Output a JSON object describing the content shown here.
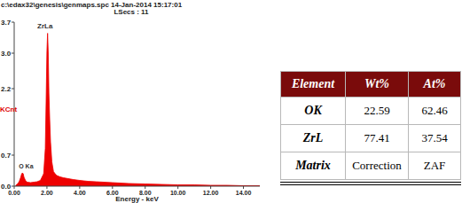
{
  "chart_data": {
    "type": "area",
    "title": "c:\\edax32\\genesis\\genmaps.spc 14-Jan-2014 15:17:01",
    "subtitle": "LSecs : 11",
    "x_label": "Energy - keV",
    "y_label": "KCnt",
    "x": [
      0.1,
      0.2,
      0.3,
      0.4,
      0.45,
      0.5,
      0.55,
      0.6,
      0.7,
      0.8,
      1.0,
      1.2,
      1.4,
      1.6,
      1.8,
      1.9,
      1.95,
      2.0,
      2.04,
      2.08,
      2.12,
      2.17,
      2.22,
      2.3,
      2.4,
      2.5,
      2.6,
      2.8,
      3.0,
      3.3,
      3.6,
      4.0,
      4.5,
      5.0,
      6.0,
      7.0,
      8.0,
      9.0,
      10.0,
      11.0,
      12.0,
      13.0,
      14.0,
      15.0
    ],
    "values": [
      0.02,
      0.05,
      0.1,
      0.2,
      0.27,
      0.3,
      0.28,
      0.2,
      0.12,
      0.09,
      0.08,
      0.09,
      0.1,
      0.13,
      0.28,
      0.85,
      1.9,
      3.05,
      3.45,
      3.0,
      2.1,
      1.5,
      1.0,
      0.55,
      0.33,
      0.28,
      0.24,
      0.21,
      0.19,
      0.17,
      0.15,
      0.13,
      0.11,
      0.1,
      0.08,
      0.06,
      0.05,
      0.04,
      0.03,
      0.03,
      0.02,
      0.02,
      0.01,
      0.01
    ],
    "color": "#ee0000",
    "xlim": [
      0,
      15
    ],
    "ylim": [
      0,
      3.7
    ],
    "xticks": [
      {
        "value": 0,
        "label": "0.00"
      },
      {
        "value": 2,
        "label": "2.00"
      },
      {
        "value": 4,
        "label": "4.00"
      },
      {
        "value": 6,
        "label": "6.00"
      },
      {
        "value": 8,
        "label": "8.00"
      },
      {
        "value": 10,
        "label": "10.00"
      },
      {
        "value": 12,
        "label": "12.00"
      },
      {
        "value": 14,
        "label": "14.00"
      }
    ],
    "yticks": [
      {
        "value": 0,
        "label": "0.0"
      },
      0.7,
      2.2,
      {
        "value": 3,
        "label": "3.0"
      },
      3.7
    ],
    "annotations": [
      {
        "text": "ZrLa",
        "x": 2.04,
        "y": 3.45
      },
      {
        "text": "O Ka",
        "x": 0.5,
        "y": 0.3
      }
    ],
    "grid": false
  },
  "table": {
    "header": [
      "Element",
      "Wt%",
      "At%"
    ],
    "rows": [
      [
        "OK",
        22.59,
        62.46
      ],
      [
        "ZrL",
        77.41,
        37.54
      ],
      [
        "Matrix",
        "Correction",
        "ZAF"
      ]
    ]
  }
}
